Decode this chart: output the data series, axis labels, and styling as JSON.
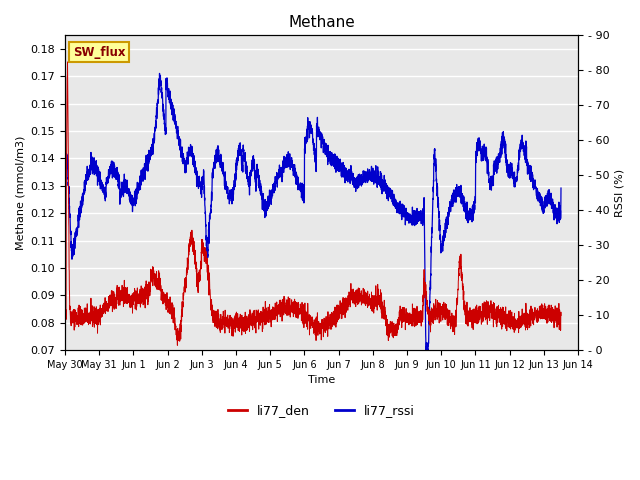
{
  "title": "Methane",
  "xlabel": "Time",
  "ylabel_left": "Methane (mmol/m3)",
  "ylabel_right": "RSSI (%)",
  "ylim_left": [
    0.07,
    0.185
  ],
  "ylim_right": [
    0,
    90
  ],
  "yticks_left": [
    0.07,
    0.08,
    0.09,
    0.1,
    0.11,
    0.12,
    0.13,
    0.14,
    0.15,
    0.16,
    0.17,
    0.18
  ],
  "yticks_right": [
    0,
    10,
    20,
    30,
    40,
    50,
    60,
    70,
    80,
    90
  ],
  "background_color": "#e8e8e8",
  "line_color_red": "#cc0000",
  "line_color_blue": "#0000cc",
  "legend_labels": [
    "li77_den",
    "li77_rssi"
  ],
  "annotation_text": "SW_flux",
  "annotation_bg": "#ffff99",
  "annotation_border": "#cc9900",
  "grid_color": "#ffffff",
  "x_start_day": 0,
  "x_end_day": 14.5,
  "x_tick_days": [
    0,
    1,
    2,
    3,
    4,
    5,
    6,
    7,
    8,
    9,
    10,
    11,
    12,
    13,
    14,
    15
  ],
  "x_tick_labels": [
    "May 30",
    "May 31",
    "Jun 1",
    "Jun 2",
    "Jun 3",
    "Jun 4",
    "Jun 5",
    "Jun 6",
    "Jun 7",
    "Jun 8",
    "Jun 9",
    "Jun 10",
    "Jun 11",
    "Jun 12",
    "Jun 13",
    "Jun 14"
  ]
}
